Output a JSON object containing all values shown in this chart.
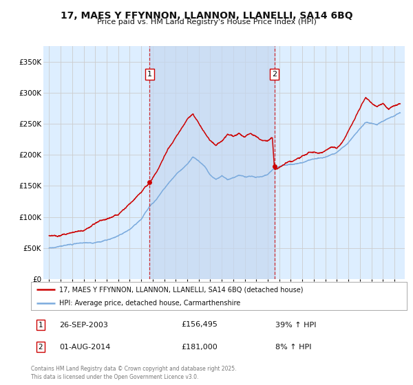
{
  "title": "17, MAES Y FFYNNON, LLANNON, LLANELLI, SA14 6BQ",
  "subtitle": "Price paid vs. HM Land Registry's House Price Index (HPI)",
  "ylim": [
    0,
    375000
  ],
  "yticks": [
    0,
    50000,
    100000,
    150000,
    200000,
    250000,
    300000,
    350000
  ],
  "ytick_labels": [
    "£0",
    "£50K",
    "£100K",
    "£150K",
    "£200K",
    "£250K",
    "£300K",
    "£350K"
  ],
  "sale1_date": 2003.73,
  "sale1_price": 156495,
  "sale2_date": 2014.58,
  "sale2_price": 181000,
  "legend_entry1": "17, MAES Y FFYNNON, LLANNON, LLANELLI, SA14 6BQ (detached house)",
  "legend_entry2": "HPI: Average price, detached house, Carmarthenshire",
  "annotation1_date": "26-SEP-2003",
  "annotation1_price": "£156,495",
  "annotation1_hpi": "39% ↑ HPI",
  "annotation2_date": "01-AUG-2014",
  "annotation2_price": "£181,000",
  "annotation2_hpi": "8% ↑ HPI",
  "footer": "Contains HM Land Registry data © Crown copyright and database right 2025.\nThis data is licensed under the Open Government Licence v3.0.",
  "line_color_red": "#cc0000",
  "line_color_blue": "#7aaadd",
  "bg_color": "#ddeeff",
  "grid_color": "#cccccc",
  "box_color_red": "#cc0000",
  "shade_color": "#c5d8f0"
}
